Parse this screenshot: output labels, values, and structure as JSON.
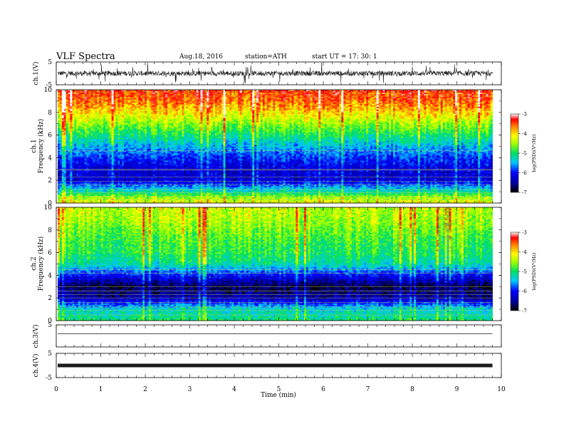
{
  "header": {
    "title": "VLF  Spectra",
    "date": "Aug.18,  2016",
    "station": "station=ATH",
    "start": "start  UT  =    17: 30: 1"
  },
  "chart_data": {
    "type": "heatmap",
    "x_axis": {
      "label": "Time  (min)",
      "range": [
        0,
        10
      ],
      "ticks": [
        "0",
        "1",
        "2",
        "3",
        "4",
        "5",
        "6",
        "7",
        "8",
        "9",
        "10"
      ],
      "data_end": 9.8
    },
    "panels": [
      {
        "id": "ch1-waveform",
        "type": "line",
        "ylabel": "ch.1(V)",
        "ylim": [
          -5,
          5
        ],
        "yticks": [
          "5",
          "-5"
        ],
        "baseline": 0,
        "noise_level": "high"
      },
      {
        "id": "ch1-spectrogram",
        "type": "heatmap",
        "ylabel_channel": "ch.1",
        "ylabel": "Frequency  (kHz)",
        "ylim": [
          0,
          10
        ],
        "yticks": [
          "0",
          "2",
          "4",
          "6",
          "8",
          "10"
        ],
        "power_profile": [
          {
            "freq_khz": 0.0,
            "log_psd": -4.3
          },
          {
            "freq_khz": 0.5,
            "log_psd": -4.6
          },
          {
            "freq_khz": 1.0,
            "log_psd": -5.3
          },
          {
            "freq_khz": 2.0,
            "log_psd": -6.3
          },
          {
            "freq_khz": 3.0,
            "log_psd": -6.3
          },
          {
            "freq_khz": 4.0,
            "log_psd": -6.0
          },
          {
            "freq_khz": 5.0,
            "log_psd": -5.6
          },
          {
            "freq_khz": 6.0,
            "log_psd": -5.1
          },
          {
            "freq_khz": 7.0,
            "log_psd": -4.6
          },
          {
            "freq_khz": 8.0,
            "log_psd": -4.1
          },
          {
            "freq_khz": 9.0,
            "log_psd": -3.7
          },
          {
            "freq_khz": 10.0,
            "log_psd": -3.5
          }
        ],
        "lines_khz": [
          0.3,
          0.6,
          0.9,
          1.2,
          1.6,
          1.9,
          2.3,
          2.9,
          3.0,
          4.6
        ]
      },
      {
        "id": "ch2-spectrogram",
        "type": "heatmap",
        "ylabel_channel": "ch.2",
        "ylabel": "Frequency  (kHz)",
        "ylim": [
          0,
          10
        ],
        "yticks": [
          "0",
          "2",
          "4",
          "6",
          "8",
          "10"
        ],
        "power_profile": [
          {
            "freq_khz": 0.0,
            "log_psd": -5.1
          },
          {
            "freq_khz": 0.5,
            "log_psd": -5.3
          },
          {
            "freq_khz": 1.0,
            "log_psd": -5.4
          },
          {
            "freq_khz": 2.0,
            "log_psd": -6.5
          },
          {
            "freq_khz": 3.0,
            "log_psd": -6.8
          },
          {
            "freq_khz": 4.0,
            "log_psd": -6.1
          },
          {
            "freq_khz": 5.0,
            "log_psd": -5.3
          },
          {
            "freq_khz": 6.0,
            "log_psd": -5.0
          },
          {
            "freq_khz": 7.0,
            "log_psd": -4.9
          },
          {
            "freq_khz": 8.0,
            "log_psd": -4.7
          },
          {
            "freq_khz": 9.0,
            "log_psd": -4.5
          },
          {
            "freq_khz": 10.0,
            "log_psd": -4.4
          }
        ],
        "lines_khz": [
          0.5,
          0.9,
          1.2,
          1.6,
          2.0,
          2.3,
          2.6,
          3.0,
          4.2,
          4.5
        ]
      },
      {
        "id": "ch3-waveform",
        "type": "line",
        "ylabel": "ch.3(V)",
        "ylim": [
          -5,
          5
        ],
        "yticks": [
          "5"
        ],
        "baseline": 1,
        "noise_level": "low"
      },
      {
        "id": "ch4-waveform",
        "type": "line",
        "ylabel": "ch.4(V)",
        "ylim": [
          -5,
          5
        ],
        "yticks": [
          "5",
          "-5"
        ],
        "baseline": 0,
        "noise_level": "thick"
      }
    ],
    "colorbar": {
      "label": "log(PSD)(V²/Hz)",
      "range": [
        -7,
        -3
      ],
      "ticks": [
        "-3",
        "-4",
        "-5",
        "-6",
        "-7"
      ]
    }
  },
  "colors": {
    "waveform": "#1a1a1a",
    "frame": "#000000"
  }
}
